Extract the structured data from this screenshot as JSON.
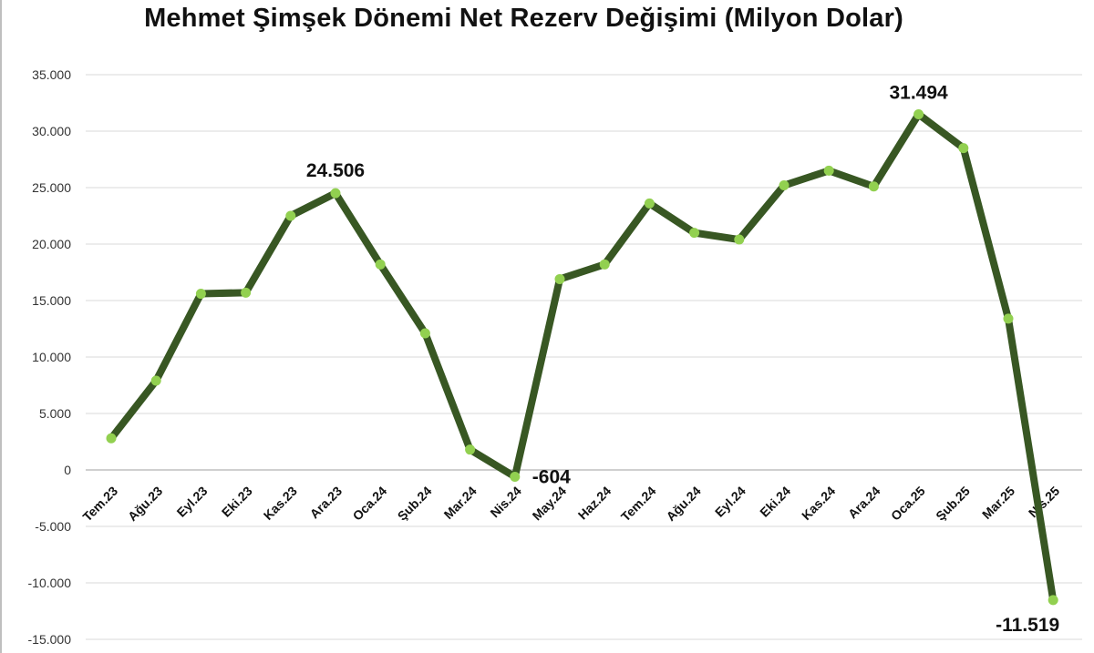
{
  "chart_data": {
    "type": "line",
    "title": "Mehmet Şimşek Dönemi Net Rezerv Değişimi (Milyon Dolar)",
    "xlabel": "",
    "ylabel": "",
    "ylim": [
      -15000,
      35000
    ],
    "yticks": [
      35000,
      30000,
      25000,
      20000,
      15000,
      10000,
      5000,
      0,
      -5000,
      -10000,
      -15000
    ],
    "ytick_labels": [
      "35.000",
      "30.000",
      "25.000",
      "20.000",
      "15.000",
      "10.000",
      "5.000",
      "0",
      "-5.000",
      "-10.000",
      "-15.000"
    ],
    "grid": true,
    "legend": "none",
    "categories": [
      "Tem.23",
      "Ağu.23",
      "Eyl.23",
      "Eki.23",
      "Kas.23",
      "Ara.23",
      "Oca.24",
      "Şub.24",
      "Mar.24",
      "Nis.24",
      "May.24",
      "Haz.24",
      "Tem.24",
      "Ağu.24",
      "Eyl.24",
      "Eki.24",
      "Kas.24",
      "Ara.24",
      "Oca.25",
      "Şub.25",
      "Mar.25",
      "Nis.25"
    ],
    "series": [
      {
        "values": [
          2800,
          7900,
          15600,
          15700,
          22500,
          24506,
          18200,
          12100,
          1800,
          -604,
          16900,
          18200,
          23600,
          21000,
          20400,
          25200,
          26500,
          25100,
          31494,
          28500,
          13400,
          -11519
        ]
      }
    ],
    "data_labels": [
      {
        "index": 5,
        "text": "24.506"
      },
      {
        "index": 9,
        "text": "-604"
      },
      {
        "index": 18,
        "text": "31.494"
      },
      {
        "index": 21,
        "text": "-11.519"
      }
    ],
    "colors": {
      "line": "#385723",
      "marker": "#92d050",
      "grid": "#d9d9d9",
      "axis": "#bfbfbf"
    }
  }
}
